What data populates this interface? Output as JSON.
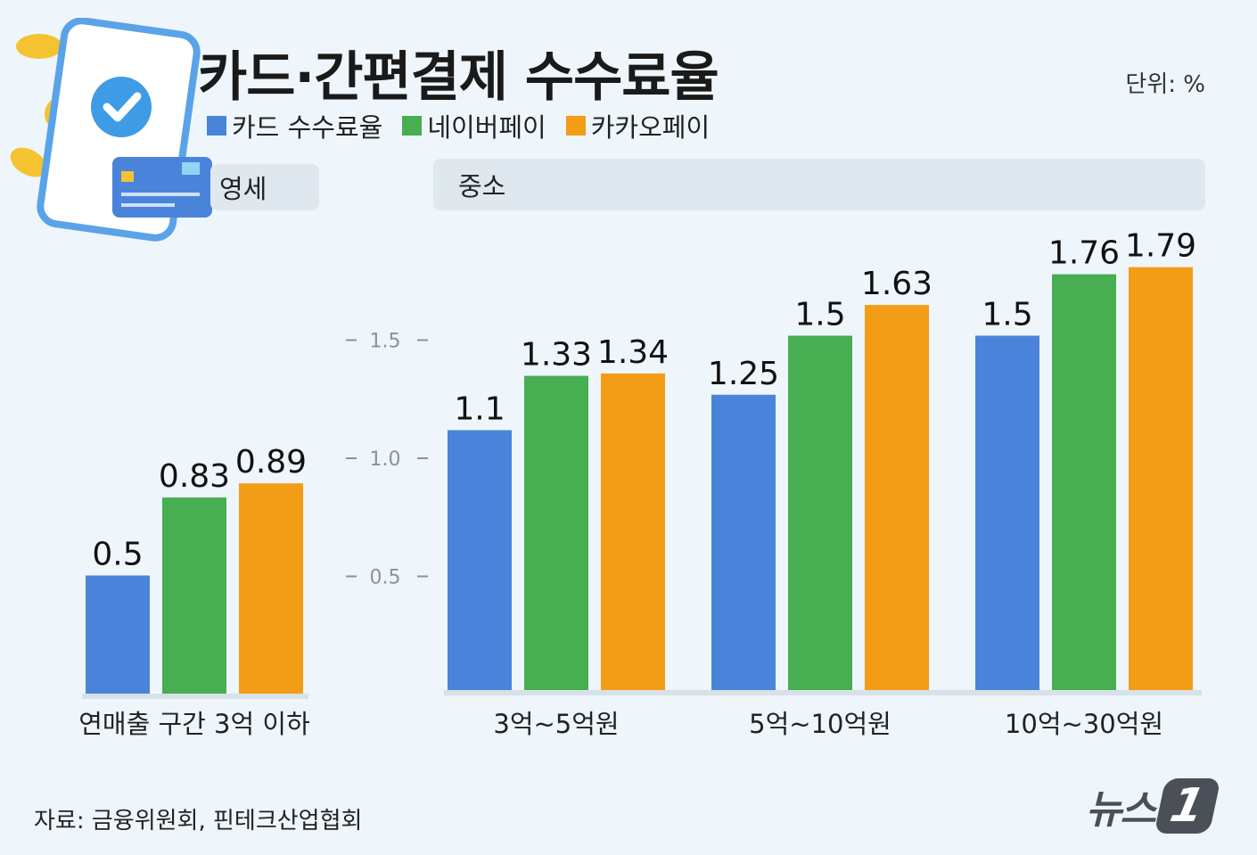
{
  "header": {
    "title": "카드·간편결제 수수료율",
    "unit": "단위: %"
  },
  "colors": {
    "card": "#4a84da",
    "naver": "#47ae52",
    "kakao": "#f39c16"
  },
  "groups": {
    "small_label": "영세",
    "medium_label": "중소"
  },
  "footer": {
    "source": "자료: 금융위원회, 핀테크산업협회",
    "logo_text": "뉴스",
    "logo_badge": "1"
  },
  "chart_data": {
    "type": "bar",
    "title": "카드·간편결제 수수료율",
    "ylabel": "",
    "xlabel": "",
    "ylim": [
      0,
      2.0
    ],
    "yticks": [
      "0.5",
      "1.0",
      "1.5"
    ],
    "ytick_values": [
      0.5,
      1.0,
      1.5
    ],
    "legend": [
      "카드 수수료율",
      "네이버페이",
      "카카오페이"
    ],
    "categories": [
      "연매출 구간 3억 이하",
      "3억~5억원",
      "5억~10억원",
      "10억~30억원"
    ],
    "series": [
      {
        "name": "카드 수수료율",
        "values": [
          0.5,
          1.1,
          1.25,
          1.5
        ],
        "labels": [
          "0.5",
          "1.1",
          "1.25",
          "1.5"
        ]
      },
      {
        "name": "네이버페이",
        "values": [
          0.83,
          1.33,
          1.5,
          1.76
        ],
        "labels": [
          "0.83",
          "1.33",
          "1.5",
          "1.76"
        ]
      },
      {
        "name": "카카오페이",
        "values": [
          0.89,
          1.34,
          1.63,
          1.79
        ],
        "labels": [
          "0.89",
          "1.34",
          "1.63",
          "1.79"
        ]
      }
    ]
  }
}
